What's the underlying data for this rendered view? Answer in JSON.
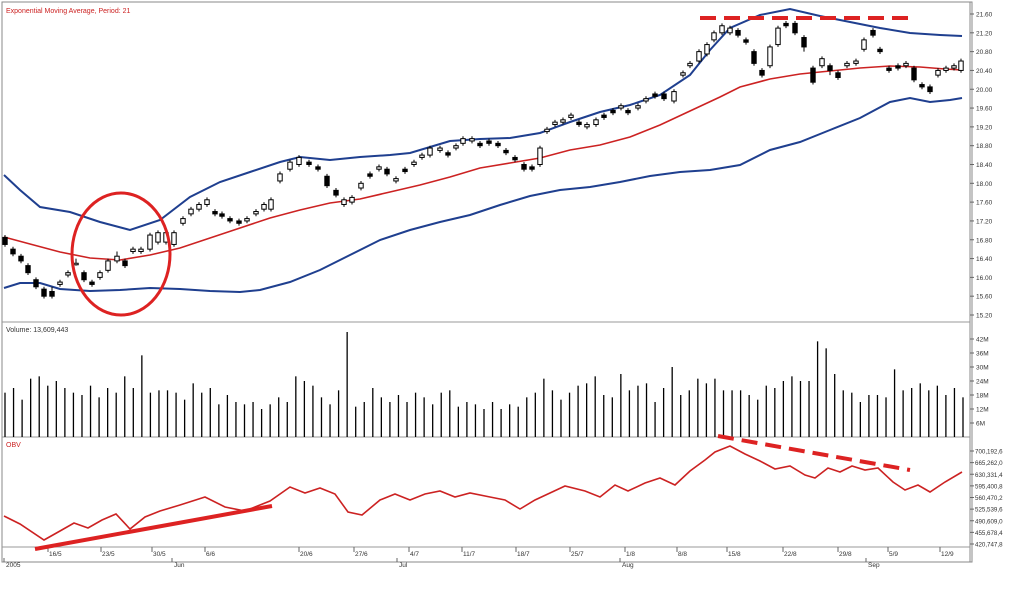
{
  "window": {
    "title": "",
    "subtitle": "Exponential Moving Average, Period: 21"
  },
  "panels": {
    "volume_label": "Volume: 13,609,443",
    "obv_label": "OBV"
  },
  "colors": {
    "price": "#000000",
    "ema": "#cc2222",
    "bands": "#1f3f8f",
    "obv": "#cc2222",
    "annotation": "#dd2222"
  },
  "chart_data": [
    {
      "type": "line",
      "panel": "price",
      "title": "",
      "y_ticks": [
        "21.60",
        "21.20",
        "20.80",
        "20.40",
        "20.00",
        "19.60",
        "19.20",
        "18.80",
        "18.40",
        "18.00",
        "17.60",
        "17.20",
        "16.80",
        "16.40",
        "16.00",
        "15.60",
        "15.20"
      ],
      "ylim": [
        15.0,
        21.7
      ],
      "series": [
        {
          "name": "",
          "style": "ohlc-candles"
        },
        {
          "name": "",
          "style": "ema-21"
        },
        {
          "name": "",
          "style": "upper-band"
        },
        {
          "name": "",
          "style": "lower-band"
        }
      ]
    },
    {
      "type": "bar",
      "panel": "volume",
      "y_ticks": [
        "42M",
        "36M",
        "30M",
        "24M",
        "18M",
        "12M",
        "6M"
      ],
      "ylim": [
        0,
        45
      ]
    },
    {
      "type": "line",
      "panel": "obv",
      "y_ticks": [
        "700,192,6",
        "665,262,0",
        "630,331,4",
        "595,400,8",
        "560,470,2",
        "525,539,6",
        "490,609,0",
        "455,678,4",
        "420,747,8"
      ],
      "ylim": [
        420747800,
        700192600
      ]
    }
  ],
  "x_axis": {
    "day_labels": [
      "16/5",
      "23/5",
      "30/5",
      "6/6",
      "20/6",
      "27/6",
      "4/7",
      "11/7",
      "18/7",
      "25/7",
      "1/8",
      "8/8",
      "15/8",
      "22/8",
      "29/8",
      "5/9",
      "12/9"
    ],
    "month_labels": [
      {
        "label": "2005"
      },
      {
        "label": "Jun"
      },
      {
        "label": "Jul"
      },
      {
        "label": "Aug"
      },
      {
        "label": "Sep"
      }
    ]
  }
}
